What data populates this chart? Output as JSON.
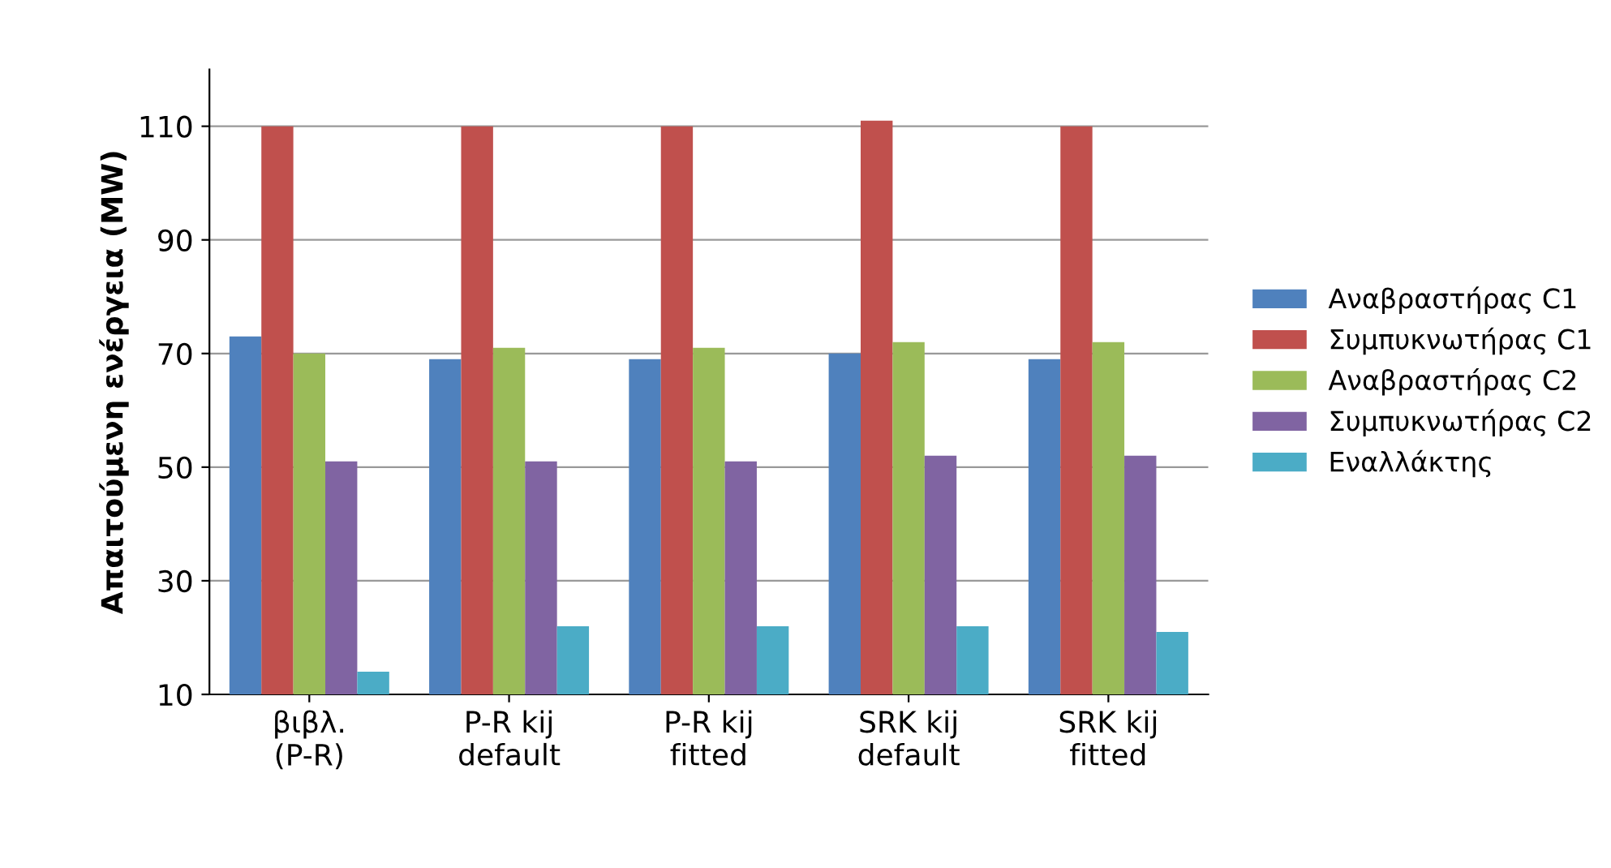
{
  "chart_data": {
    "type": "bar",
    "categories": [
      "βιβλ.\n(P-R)",
      "P-R kij\ndefault",
      "P-R kij\nfitted",
      "SRK kij\ndefault",
      "SRK kij\nfitted"
    ],
    "ylabel": "Απαιτούμενη ενέργεια (MW)",
    "series": [
      {
        "name": "Αναβραστήρας C1",
        "color": "#4f81bd",
        "values": [
          73,
          69,
          69,
          70,
          69
        ]
      },
      {
        "name": "Συμπυκνωτήρας C1",
        "color": "#c0504d",
        "values": [
          110,
          110,
          110,
          111,
          110
        ]
      },
      {
        "name": "Αναβραστήρας C2",
        "color": "#9bbb59",
        "values": [
          70,
          71,
          71,
          72,
          72
        ]
      },
      {
        "name": "Συμπυκνωτήρας C2",
        "color": "#8064a2",
        "values": [
          51,
          51,
          51,
          52,
          52
        ]
      },
      {
        "name": "Εναλλάκτης",
        "color": "#4bacc6",
        "values": [
          14,
          22,
          22,
          22,
          21
        ]
      }
    ],
    "ylim": [
      10,
      120
    ],
    "yticks": [
      10,
      30,
      50,
      70,
      90,
      110
    ],
    "grid": "y",
    "legend": "right"
  }
}
